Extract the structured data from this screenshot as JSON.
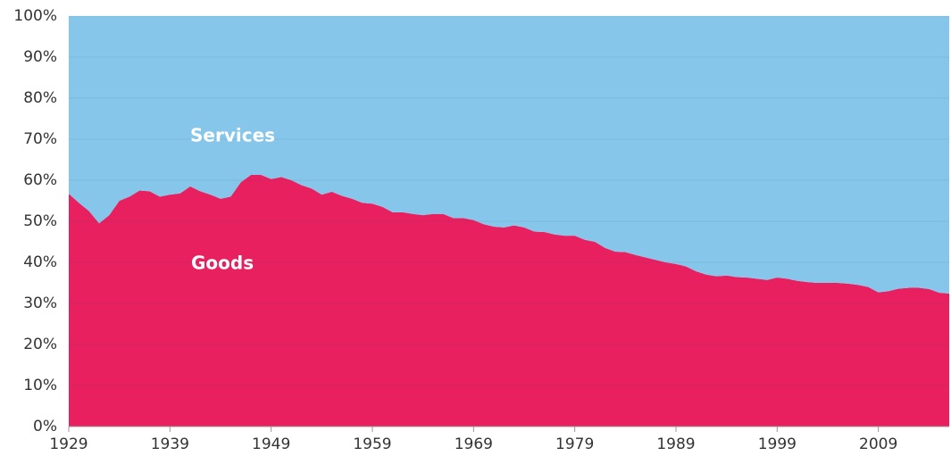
{
  "chart_data": {
    "type": "stacked_area",
    "annotations": [
      "Services",
      "Goods"
    ],
    "x": [
      1929,
      1930,
      1931,
      1932,
      1933,
      1934,
      1935,
      1936,
      1937,
      1938,
      1939,
      1940,
      1941,
      1942,
      1943,
      1944,
      1945,
      1946,
      1947,
      1948,
      1949,
      1950,
      1951,
      1952,
      1953,
      1954,
      1955,
      1956,
      1957,
      1958,
      1959,
      1960,
      1961,
      1962,
      1963,
      1964,
      1965,
      1966,
      1967,
      1968,
      1969,
      1970,
      1971,
      1972,
      1973,
      1974,
      1975,
      1976,
      1977,
      1978,
      1979,
      1980,
      1981,
      1982,
      1983,
      1984,
      1985,
      1986,
      1987,
      1988,
      1989,
      1990,
      1991,
      1992,
      1993,
      1994,
      1995,
      1996,
      1997,
      1998,
      1999,
      2000,
      2001,
      2002,
      2003,
      2004,
      2005,
      2006,
      2007,
      2008,
      2009,
      2010,
      2011,
      2012,
      2013,
      2014,
      2015,
      2016
    ],
    "series": [
      {
        "name": "Goods",
        "color": "#e8205f",
        "values": [
          56.7,
          54.5,
          52.5,
          49.5,
          51.5,
          55,
          56,
          57.5,
          57.3,
          56,
          56.5,
          56.8,
          58.5,
          57.3,
          56.5,
          55.5,
          56,
          59.5,
          61.3,
          61.3,
          60.3,
          60.8,
          60,
          58.8,
          58,
          56.5,
          57.2,
          56.2,
          55.5,
          54.5,
          54.3,
          53.5,
          52.2,
          52.2,
          51.8,
          51.5,
          51.8,
          51.8,
          50.8,
          50.8,
          50.3,
          49.3,
          48.7,
          48.5,
          49,
          48.5,
          47.5,
          47.4,
          46.8,
          46.5,
          46.5,
          45.5,
          45,
          43.5,
          42.6,
          42.5,
          41.8,
          41.2,
          40.6,
          40,
          39.6,
          39,
          37.8,
          37,
          36.6,
          36.8,
          36.4,
          36.3,
          36,
          35.7,
          36.3,
          36,
          35.5,
          35.2,
          35,
          35,
          35,
          34.8,
          34.5,
          34,
          32.7,
          33,
          33.6,
          33.8,
          33.8,
          33.5,
          32.6,
          32.4
        ]
      },
      {
        "name": "Services",
        "color": "#85c6ea",
        "values": [
          43.3,
          45.5,
          47.5,
          50.5,
          48.5,
          45,
          44,
          42.5,
          42.7,
          44,
          43.5,
          43.2,
          41.5,
          42.7,
          43.5,
          44.5,
          44,
          40.5,
          38.7,
          38.7,
          39.7,
          39.2,
          40,
          41.2,
          42,
          43.5,
          42.8,
          43.8,
          44.5,
          45.5,
          45.7,
          46.5,
          47.8,
          47.8,
          48.2,
          48.5,
          48.2,
          48.2,
          49.2,
          49.2,
          49.7,
          50.7,
          51.3,
          51.5,
          51,
          51.5,
          52.5,
          52.6,
          53.2,
          53.5,
          53.5,
          54.5,
          55,
          56.5,
          57.4,
          57.5,
          58.2,
          58.8,
          59.4,
          60,
          60.4,
          61,
          62.2,
          63,
          63.4,
          63.2,
          63.6,
          63.7,
          64,
          64.3,
          63.7,
          64,
          64.5,
          64.8,
          65,
          65,
          65,
          65.2,
          65.5,
          66,
          67.3,
          67,
          66.4,
          66.2,
          66.2,
          66.5,
          67.4,
          67.6
        ]
      }
    ],
    "xlim": [
      1929,
      2016
    ],
    "xticks": [
      1929,
      1939,
      1949,
      1959,
      1969,
      1979,
      1989,
      1999,
      2009
    ],
    "ylim": [
      0,
      100
    ],
    "yticks": [
      {
        "value": 0,
        "label": "0%"
      },
      {
        "value": 10,
        "label": "10%"
      },
      {
        "value": 20,
        "label": "20%"
      },
      {
        "value": 30,
        "label": "30%"
      },
      {
        "value": 40,
        "label": "40%"
      },
      {
        "value": 50,
        "label": "50%"
      },
      {
        "value": 60,
        "label": "60%"
      },
      {
        "value": 70,
        "label": "70%"
      },
      {
        "value": 80,
        "label": "80%"
      },
      {
        "value": 90,
        "label": "90%"
      },
      {
        "value": 100,
        "label": "100%"
      }
    ],
    "grid": true
  }
}
